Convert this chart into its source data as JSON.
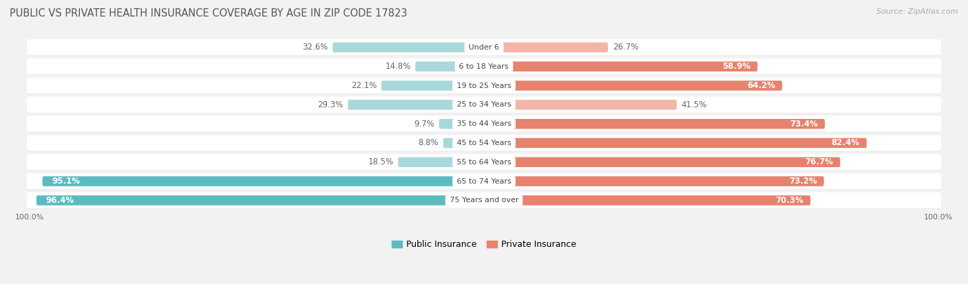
{
  "title": "PUBLIC VS PRIVATE HEALTH INSURANCE COVERAGE BY AGE IN ZIP CODE 17823",
  "source": "Source: ZipAtlas.com",
  "categories": [
    "Under 6",
    "6 to 18 Years",
    "19 to 25 Years",
    "25 to 34 Years",
    "35 to 44 Years",
    "45 to 54 Years",
    "55 to 64 Years",
    "65 to 74 Years",
    "75 Years and over"
  ],
  "public_values": [
    32.6,
    14.8,
    22.1,
    29.3,
    9.7,
    8.8,
    18.5,
    95.1,
    96.4
  ],
  "private_values": [
    26.7,
    58.9,
    64.2,
    41.5,
    73.4,
    82.4,
    76.7,
    73.2,
    70.3
  ],
  "public_color": "#5bbcbf",
  "private_color": "#e8816d",
  "public_color_light": "#a8d8da",
  "private_color_light": "#f2b5a8",
  "bar_height": 0.52,
  "bg_color": "#f2f2f2",
  "row_bg": "#ffffff",
  "row_shadow": "#e0e0e0",
  "axis_label": "100.0%",
  "title_fontsize": 10.5,
  "label_fontsize": 8.5,
  "category_fontsize": 8.0,
  "value_max": 100.0,
  "title_color": "#555555",
  "source_color": "#aaaaaa",
  "value_label_color": "#666666"
}
